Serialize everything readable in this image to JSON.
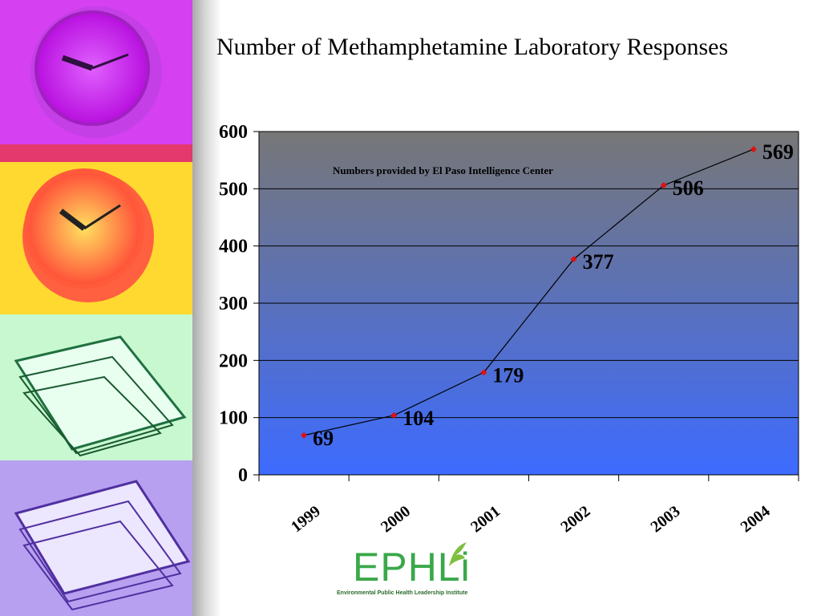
{
  "slide": {
    "title": "Number of Methamphetamine Laboratory Responses"
  },
  "logo": {
    "name": "EPHLi",
    "subtitle": "Environmental Public Health Leadership Institute",
    "color": "#3aa84a"
  },
  "side_panel": {
    "icons": [
      "clock-icon",
      "clock-icon",
      "papers-icon",
      "papers-icon"
    ]
  },
  "chart_data": {
    "type": "line",
    "title": "",
    "categories": [
      "1999",
      "2000",
      "2001",
      "2002",
      "2003",
      "2004"
    ],
    "values": [
      69,
      104,
      179,
      377,
      506,
      569
    ],
    "data_labels": [
      "69",
      "104",
      "179",
      "377",
      "506",
      "569"
    ],
    "y_ticks": [
      "0",
      "100",
      "200",
      "300",
      "400",
      "500",
      "600"
    ],
    "ylim": [
      0,
      600
    ],
    "xlabel": "",
    "ylabel": "",
    "grid": true,
    "annotation": "Numbers provided by El Paso Intelligence Center",
    "colors": {
      "line": "#000000",
      "marker": "#e01010",
      "plot_top": "#777777",
      "plot_bottom": "#3d6bff"
    }
  }
}
